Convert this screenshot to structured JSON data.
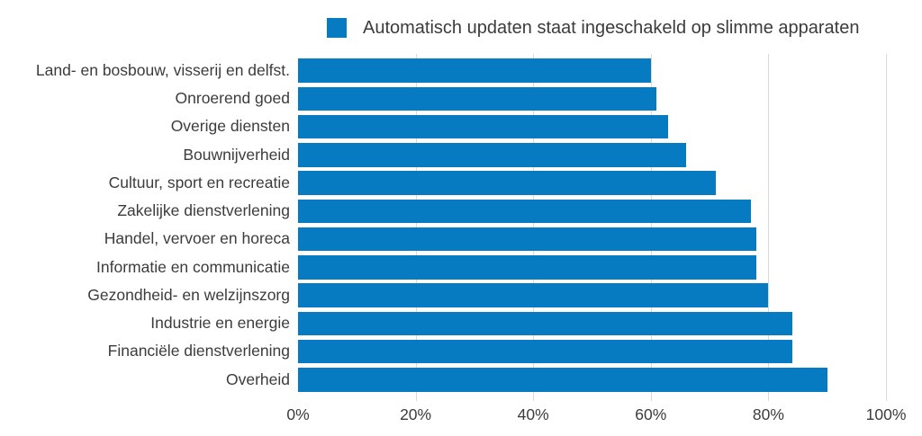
{
  "colors": {
    "bar": "#077bc2",
    "gridline": "#d9d9d9",
    "text": "#3c3c3c",
    "background": "#ffffff"
  },
  "chart_data": {
    "type": "bar",
    "orientation": "horizontal",
    "title": "",
    "legend": [
      "Automatisch updaten staat ingeschakeld op slimme apparaten"
    ],
    "legend_position": "top",
    "categories": [
      "Land- en bosbouw, visserij en delfst.",
      "Onroerend goed",
      "Overige diensten",
      "Bouwnijverheid",
      "Cultuur, sport en recreatie",
      "Zakelijke dienstverlening",
      "Handel, vervoer en horeca",
      "Informatie en communicatie",
      "Gezondheid- en welzijnszorg",
      "Industrie en energie",
      "Financiële dienstverlening",
      "Overheid"
    ],
    "values": [
      60,
      61,
      63,
      66,
      71,
      77,
      78,
      78,
      80,
      84,
      84,
      90
    ],
    "unit": "%",
    "xlabel": "",
    "ylabel": "",
    "xlim": [
      0,
      100
    ],
    "x_ticks": [
      {
        "value": 0,
        "label": "0%"
      },
      {
        "value": 20,
        "label": "20%"
      },
      {
        "value": 40,
        "label": "40%"
      },
      {
        "value": 60,
        "label": "60%"
      },
      {
        "value": 80,
        "label": "80%"
      },
      {
        "value": 100,
        "label": "100%"
      }
    ],
    "grid": true
  }
}
